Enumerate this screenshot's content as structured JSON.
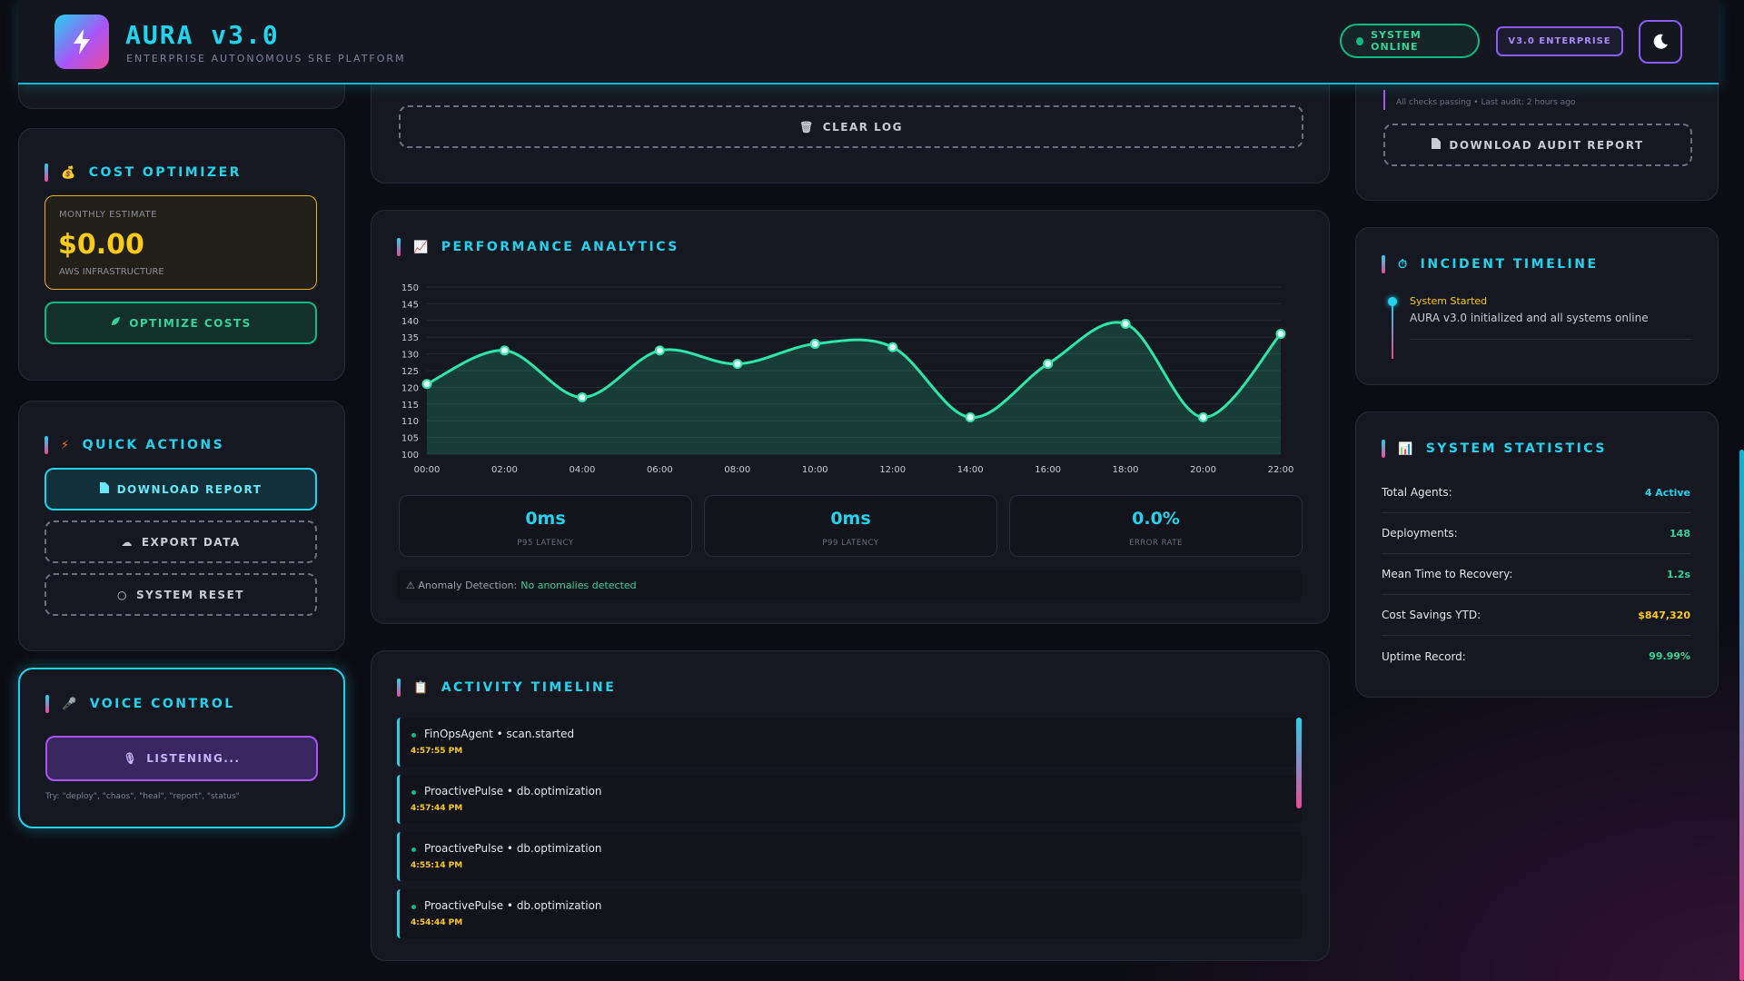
{
  "header": {
    "title": "AURA v3.0",
    "subtitle": "ENTERPRISE AUTONOMOUS SRE PLATFORM",
    "status_pill": "SYSTEM ONLINE",
    "edition_pill": "V3.0 ENTERPRISE",
    "theme_icon": "moon-icon",
    "logo_icon": "lightning-icon"
  },
  "log_panel": {
    "clear_label": "CLEAR LOG"
  },
  "cost_optimizer": {
    "title": "COST OPTIMIZER",
    "monthly_label": "MONTHLY ESTIMATE",
    "monthly_value": "$0.00",
    "infra_label": "AWS INFRASTRUCTURE",
    "optimize_label": "OPTIMIZE COSTS"
  },
  "quick_actions": {
    "title": "QUICK ACTIONS",
    "download_label": "DOWNLOAD REPORT",
    "export_label": "EXPORT DATA",
    "reset_label": "SYSTEM RESET"
  },
  "voice_control": {
    "title": "VOICE CONTROL",
    "listening_label": "LISTENING...",
    "hint": "Try: \"deploy\", \"chaos\", \"heal\", \"report\", \"status\""
  },
  "performance": {
    "title": "PERFORMANCE ANALYTICS",
    "metrics": [
      {
        "value": "0ms",
        "label": "P95 LATENCY"
      },
      {
        "value": "0ms",
        "label": "P99 LATENCY"
      },
      {
        "value": "0.0%",
        "label": "ERROR RATE"
      }
    ],
    "anomaly_label": "⚠ Anomaly Detection:",
    "anomaly_value": "No anomalies detected"
  },
  "chart_data": {
    "type": "area",
    "x": [
      "00:00",
      "02:00",
      "04:00",
      "06:00",
      "08:00",
      "10:00",
      "12:00",
      "14:00",
      "16:00",
      "18:00",
      "20:00",
      "22:00"
    ],
    "values": [
      121,
      131,
      117,
      131,
      127,
      133,
      132,
      111,
      127,
      139,
      111,
      136
    ],
    "ylim": [
      100,
      150
    ],
    "yticks": [
      100,
      105,
      110,
      115,
      120,
      125,
      130,
      135,
      140,
      145,
      150
    ],
    "grid": true,
    "color": "#2ee6a8"
  },
  "activity": {
    "title": "ACTIVITY TIMELINE",
    "items": [
      {
        "text": "FinOpsAgent • scan.started",
        "time": "4:57:55 PM"
      },
      {
        "text": "ProactivePulse • db.optimization",
        "time": "4:57:44 PM"
      },
      {
        "text": "ProactivePulse • db.optimization",
        "time": "4:55:14 PM"
      },
      {
        "text": "ProactivePulse • db.optimization",
        "time": "4:54:44 PM"
      }
    ]
  },
  "audit": {
    "status_text": "All checks passing • Last audit: 2 hours ago",
    "download_label": "DOWNLOAD AUDIT REPORT"
  },
  "incident": {
    "title": "INCIDENT TIMELINE",
    "event_title": "System Started",
    "event_desc": "AURA v3.0 initialized and all systems online"
  },
  "statistics": {
    "title": "SYSTEM STATISTICS",
    "rows": [
      {
        "label": "Total Agents:",
        "value": "4 Active",
        "color": "#22d3ee"
      },
      {
        "label": "Deployments:",
        "value": "148",
        "color": "#34d399"
      },
      {
        "label": "Mean Time to Recovery:",
        "value": "1.2s",
        "color": "#34d399"
      },
      {
        "label": "Cost Savings YTD:",
        "value": "$847,320",
        "color": "#facc15"
      },
      {
        "label": "Uptime Record:",
        "value": "99.99%",
        "color": "#34d399"
      }
    ]
  }
}
